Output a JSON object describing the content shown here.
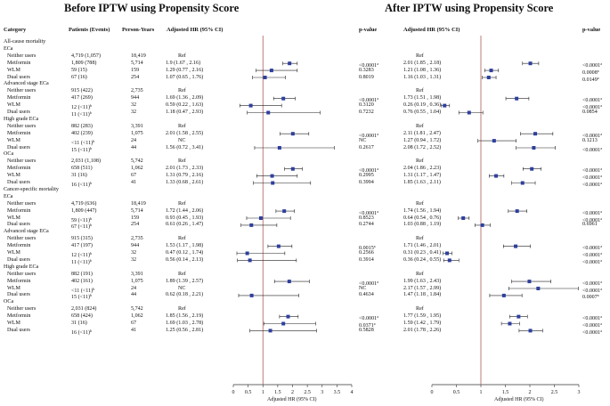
{
  "titles": {
    "before": "Before IPTW using Propensity Score",
    "after": "After IPTW using Propensity Score"
  },
  "headers": {
    "category": "Category",
    "patients": "Patients (Events)",
    "person_years": "Person-Years",
    "adj_hr_before": "Adjusted HR (95% CI)",
    "pvalue_before": "p-value",
    "adj_hr_after": "Adjusted HR (95% CI)",
    "pvalue_after": "p-value"
  },
  "axis": {
    "label": "Adjusted HR (95% CI)",
    "before_ticks": [
      "0",
      "0.5",
      "1",
      "1.5",
      "2",
      "2.5",
      "3",
      "3.5",
      "4"
    ],
    "after_ticks": [
      "0",
      "0.5",
      "1",
      "1.5",
      "2",
      "2.5",
      "3"
    ]
  },
  "rows": [
    {
      "type": "section",
      "label": "All-cause mortality"
    },
    {
      "type": "group",
      "label": "ECa"
    },
    {
      "type": "data",
      "label": "Neither users",
      "patients": "4,719 (1,057)",
      "py": "18,419",
      "hr_b_text": "Ref",
      "p_b": "",
      "hr_a_text": "Ref",
      "p_a": ""
    },
    {
      "type": "data",
      "label": "Metformin",
      "patients": "1,809 (788)",
      "py": "5,714",
      "hr_b_text": "1.9 (1.67 , 2.16)",
      "p_b": "<0.0001",
      "p_b_sup": "a",
      "hr_a_text": "2.01 (1.85 , 2.18)",
      "p_a": "<0.0001",
      "p_a_sup": "a",
      "hr_b": 1.9,
      "lo_b": 1.67,
      "hi_b": 2.16,
      "hr_a": 2.01,
      "lo_a": 1.85,
      "hi_a": 2.18
    },
    {
      "type": "data",
      "label": "WLM",
      "patients": "59 (15)",
      "py": "159",
      "hr_b_text": "1.29 (0.77 , 2.16)",
      "p_b": "0.3283",
      "hr_a_text": "1.21 (1.08 , 1.36)",
      "p_a": "0.0008",
      "p_a_sup": "a",
      "hr_b": 1.29,
      "lo_b": 0.77,
      "hi_b": 2.16,
      "hr_a": 1.21,
      "lo_a": 1.08,
      "hi_a": 1.36
    },
    {
      "type": "data",
      "label": "Dual users",
      "patients": "67 (16)",
      "py": "254",
      "hr_b_text": "1.07 (0.65 , 1.76)",
      "p_b": "0.8019",
      "hr_a_text": "1.16 (1.03 , 1.31)",
      "p_a": "0.0149",
      "p_a_sup": "a",
      "hr_b": 1.07,
      "lo_b": 0.65,
      "hi_b": 1.76,
      "hr_a": 1.16,
      "lo_a": 1.03,
      "hi_a": 1.31
    },
    {
      "type": "group",
      "label": "Advanced stage ECa"
    },
    {
      "type": "data",
      "label": "Neither users",
      "patients": "915 (422)",
      "py": "2,735",
      "hr_b_text": "Ref",
      "p_b": "",
      "hr_a_text": "Ref",
      "p_a": ""
    },
    {
      "type": "data",
      "label": "Metformin",
      "patients": "417 (269)",
      "py": "944",
      "hr_b_text": "1.69 (1.36 , 2.09)",
      "p_b": "<0.0001",
      "p_b_sup": "a",
      "hr_a_text": "1.73 (1.51 , 1.98)",
      "p_a": "<0.0001",
      "p_a_sup": "a",
      "hr_b": 1.69,
      "lo_b": 1.36,
      "hi_b": 2.09,
      "hr_a": 1.73,
      "lo_a": 1.51,
      "hi_a": 1.98
    },
    {
      "type": "data",
      "label": "WLM",
      "patients": "12 (<11)",
      "patients_sup": "b",
      "py": "32",
      "hr_b_text": "0.59 (0.22 , 1.63)",
      "p_b": "0.3120",
      "hr_a_text": "0.26 (0.19 , 0.36)",
      "p_a": "<0.0001",
      "p_a_sup": "a",
      "hr_b": 0.59,
      "lo_b": 0.22,
      "hi_b": 1.63,
      "hr_a": 0.26,
      "lo_a": 0.19,
      "hi_a": 0.36
    },
    {
      "type": "data",
      "label": "Dual users",
      "patients": "11 (<11)",
      "patients_sup": "b",
      "py": "32",
      "hr_b_text": "1.18 (0.47 , 2.93)",
      "p_b": "0.7232",
      "hr_a_text": "0.76 (0.55 , 1.04)",
      "p_a": "0.0854",
      "hr_b": 1.18,
      "lo_b": 0.47,
      "hi_b": 2.93,
      "hr_a": 0.76,
      "lo_a": 0.55,
      "hi_a": 1.04
    },
    {
      "type": "group",
      "label": "High grade ECa"
    },
    {
      "type": "data",
      "label": "Neither users",
      "patients": "882 (283)",
      "py": "3,391",
      "hr_b_text": "Ref",
      "p_b": "",
      "hr_a_text": "Ref",
      "p_a": ""
    },
    {
      "type": "data",
      "label": "Metformin",
      "patients": "402 (239)",
      "py": "1,075",
      "hr_b_text": "2.01 (1.58 , 2.55)",
      "p_b": "<0.0001",
      "p_b_sup": "a",
      "hr_a_text": "2.11 (1.81 , 2.47)",
      "p_a": "<0.0001",
      "p_a_sup": "a",
      "hr_b": 2.01,
      "lo_b": 1.58,
      "hi_b": 2.55,
      "hr_a": 2.11,
      "lo_a": 1.81,
      "hi_a": 2.47
    },
    {
      "type": "data",
      "label": "WLM",
      "patients": "<11 (<11)",
      "patients_sup": "b",
      "py": "24",
      "hr_b_text": "NC",
      "p_b": "NC",
      "hr_a_text": "1.27 (0.94 , 1.72)",
      "p_a": "0.1213",
      "hr_a": 1.27,
      "lo_a": 0.94,
      "hi_a": 1.72
    },
    {
      "type": "data",
      "label": "Dual users",
      "patients": "15 (<11)",
      "patients_sup": "b",
      "py": "44",
      "hr_b_text": "1.56 (0.72 , 3.41)",
      "p_b": "0.2617",
      "hr_a_text": "2.08 (1.72 , 2.52)",
      "p_a": "<0.0001",
      "p_a_sup": "a",
      "hr_b": 1.56,
      "lo_b": 0.72,
      "hi_b": 3.41,
      "hr_a": 2.08,
      "lo_a": 1.72,
      "hi_a": 2.52
    },
    {
      "type": "group",
      "label": "OCa"
    },
    {
      "type": "data",
      "label": "Neither users",
      "patients": "2,031 (1,108)",
      "py": "5,742",
      "hr_b_text": "Ref",
      "p_b": "",
      "hr_a_text": "Ref",
      "p_a": ""
    },
    {
      "type": "data",
      "label": "Metformin",
      "patients": "658 (511)",
      "py": "1,062",
      "hr_b_text": "2.01 (1.73 , 2.33)",
      "p_b": "<0.0001",
      "p_b_sup": "a",
      "hr_a_text": "2.04 (1.86 , 2.23)",
      "p_a": "<0.0001",
      "p_a_sup": "a",
      "hr_b": 2.01,
      "lo_b": 1.73,
      "hi_b": 2.33,
      "hr_a": 2.04,
      "lo_a": 1.86,
      "hi_a": 2.23
    },
    {
      "type": "data",
      "label": "WLM",
      "patients": "31 (16)",
      "py": "67",
      "hr_b_text": "1.31 (0.79 , 2.16)",
      "p_b": "0.2995",
      "hr_a_text": "1.31 (1.17 , 1.47)",
      "p_a": "<0.0001",
      "p_a_sup": "a",
      "hr_b": 1.31,
      "lo_b": 0.79,
      "hi_b": 2.16,
      "hr_a": 1.31,
      "lo_a": 1.17,
      "hi_a": 1.47
    },
    {
      "type": "data",
      "label": "Dual users",
      "patients": "16 (<11)",
      "patients_sup": "b",
      "py": "41",
      "hr_b_text": "1.33 (0.68 , 2.61)",
      "p_b": "0.3994",
      "hr_a_text": "1.85 (1.63 , 2.11)",
      "p_a": "<0.0001",
      "p_a_sup": "a",
      "hr_b": 1.33,
      "lo_b": 0.68,
      "hi_b": 2.61,
      "hr_a": 1.85,
      "lo_a": 1.63,
      "hi_a": 2.11
    },
    {
      "type": "section",
      "label": "Cancer-specific mortality"
    },
    {
      "type": "group",
      "label": "ECa"
    },
    {
      "type": "data",
      "label": "Neither users",
      "patients": "4,719 (636)",
      "py": "18,419",
      "hr_b_text": "Ref",
      "p_b": "",
      "hr_a_text": "Ref",
      "p_a": ""
    },
    {
      "type": "data",
      "label": "Metformin",
      "patients": "1,809 (447)",
      "py": "5,714",
      "hr_b_text": "1.72 (1.44 , 2.06)",
      "p_b": "<0.0001",
      "p_b_sup": "a",
      "hr_a_text": "1.74 (1.56 , 1.94)",
      "p_a": "<0.0001",
      "p_a_sup": "a",
      "hr_b": 1.72,
      "lo_b": 1.44,
      "hi_b": 2.06,
      "hr_a": 1.74,
      "lo_a": 1.56,
      "hi_a": 1.94
    },
    {
      "type": "data",
      "label": "WLM",
      "patients": "59 (<11)",
      "patients_sup": "b",
      "py": "159",
      "hr_b_text": "0.93 (0.45 , 1.93)",
      "p_b": "0.8523",
      "hr_a_text": "0.64 (0.54 , 0.76)",
      "p_a": "<0.0001",
      "p_a_sup": "a",
      "hr_b": 0.93,
      "lo_b": 0.45,
      "hi_b": 1.93,
      "hr_a": 0.64,
      "lo_a": 0.54,
      "hi_a": 0.76
    },
    {
      "type": "data",
      "label": "Dual users",
      "patients": "67 (<11)",
      "patients_sup": "b",
      "py": "254",
      "hr_b_text": "0.61 (0.26 , 1.47)",
      "p_b": "0.2744",
      "hr_a_text": "1.03 (0.88 , 1.19)",
      "p_a": "0.6961",
      "hr_b": 0.61,
      "lo_b": 0.26,
      "hi_b": 1.47,
      "hr_a": 1.03,
      "lo_a": 0.88,
      "hi_a": 1.19
    },
    {
      "type": "group",
      "label": "Advanced stage ECa"
    },
    {
      "type": "data",
      "label": "Neither users",
      "patients": "915 (315)",
      "py": "2,735",
      "hr_b_text": "Ref",
      "p_b": "",
      "hr_a_text": "Ref",
      "p_a": ""
    },
    {
      "type": "data",
      "label": "Metformin",
      "patients": "417 (197)",
      "py": "944",
      "hr_b_text": "1.53 (1.17 , 1.98)",
      "p_b": "0.0015",
      "p_b_sup": "a",
      "hr_a_text": "1.71 (1.46 , 2.01)",
      "p_a": "<0.0001",
      "p_a_sup": "a",
      "hr_b": 1.53,
      "lo_b": 1.17,
      "hi_b": 1.98,
      "hr_a": 1.71,
      "lo_a": 1.46,
      "hi_a": 2.01
    },
    {
      "type": "data",
      "label": "WLM",
      "patients": "12 (<11)",
      "patients_sup": "b",
      "py": "32",
      "hr_b_text": "0.47 (0.12 , 1.74)",
      "p_b": "0.2566",
      "hr_a_text": "0.31 (0.23 , 0.41)",
      "p_a": "<0.0001",
      "p_a_sup": "a",
      "hr_b": 0.47,
      "lo_b": 0.12,
      "hi_b": 1.74,
      "hr_a": 0.31,
      "lo_a": 0.23,
      "hi_a": 0.41
    },
    {
      "type": "data",
      "label": "Dual users",
      "patients": "11 (<11)",
      "patients_sup": "b",
      "py": "32",
      "hr_b_text": "0.56 (0.14 , 2.13)",
      "p_b": "0.3914",
      "hr_a_text": "0.36 (0.24 , 0.55)",
      "p_a": "<0.0001",
      "p_a_sup": "a",
      "hr_b": 0.56,
      "lo_b": 0.14,
      "hi_b": 2.13,
      "hr_a": 0.36,
      "lo_a": 0.24,
      "hi_a": 0.55
    },
    {
      "type": "group",
      "label": "High grade ECa"
    },
    {
      "type": "data",
      "label": "Neither users",
      "patients": "882 (191)",
      "py": "3,391",
      "hr_b_text": "Ref",
      "p_b": "",
      "hr_a_text": "Ref",
      "p_a": ""
    },
    {
      "type": "data",
      "label": "Metformin",
      "patients": "402 (161)",
      "py": "1,075",
      "hr_b_text": "1.89 (1.39 , 2.57)",
      "p_b": "<0.0001",
      "p_b_sup": "a",
      "hr_a_text": "1.99 (1.63 , 2.43)",
      "p_a": "<0.0001",
      "p_a_sup": "a",
      "hr_b": 1.89,
      "lo_b": 1.39,
      "hi_b": 2.57,
      "hr_a": 1.99,
      "lo_a": 1.63,
      "hi_a": 2.43
    },
    {
      "type": "data",
      "label": "WLM",
      "patients": "<11 (<11)",
      "patients_sup": "b",
      "py": "24",
      "hr_b_text": "NC",
      "p_b": "NC",
      "hr_a_text": "2.17 (1.57 , 2.99)",
      "p_a": "<0.0001",
      "p_a_sup": "a",
      "hr_a": 2.17,
      "lo_a": 1.57,
      "hi_a": 2.99
    },
    {
      "type": "data",
      "label": "Dual users",
      "patients": "15 (<11)",
      "patients_sup": "b",
      "py": "44",
      "hr_b_text": "0.62 (0.18 , 2.21)",
      "p_b": "0.4634",
      "hr_a_text": "1.47 (1.18 , 1.84)",
      "p_a": "0.0007",
      "p_a_sup": "a",
      "hr_b": 0.62,
      "lo_b": 0.18,
      "hi_b": 2.21,
      "hr_a": 1.47,
      "lo_a": 1.18,
      "hi_a": 1.84
    },
    {
      "type": "group",
      "label": "OCa"
    },
    {
      "type": "data",
      "label": "Neither users",
      "patients": "2,031 (824)",
      "py": "5,742",
      "hr_b_text": "Ref",
      "p_b": "",
      "hr_a_text": "Ref",
      "p_a": ""
    },
    {
      "type": "data",
      "label": "Metformin",
      "patients": "658 (424)",
      "py": "1,062",
      "hr_b_text": "1.85 (1.56 , 2.19)",
      "p_b": "<0.0001",
      "p_b_sup": "a",
      "hr_a_text": "1.77 (1.59 , 1.95)",
      "p_a": "<0.0001",
      "p_a_sup": "a",
      "hr_b": 1.85,
      "lo_b": 1.56,
      "hi_b": 2.19,
      "hr_a": 1.77,
      "lo_a": 1.59,
      "hi_a": 1.95
    },
    {
      "type": "data",
      "label": "WLM",
      "patients": "31 (16)",
      "py": "67",
      "hr_b_text": "1.69 (1.03 , 2.78)",
      "p_b": "0.0371",
      "p_b_sup": "a",
      "hr_a_text": "1.59 (1.42 , 1.79)",
      "p_a": "<0.0001",
      "p_a_sup": "a",
      "hr_b": 1.69,
      "lo_b": 1.03,
      "hi_b": 2.78,
      "hr_a": 1.59,
      "lo_a": 1.42,
      "hi_a": 1.79
    },
    {
      "type": "data",
      "label": "Dual users",
      "patients": "16 (<11)",
      "patients_sup": "b",
      "py": "41",
      "hr_b_text": "1.25 (0.56 , 2.81)",
      "p_b": "0.5828",
      "hr_a_text": "2.01 (1.78 , 2.26)",
      "p_a": "<0.0001",
      "p_a_sup": "a",
      "hr_b": 1.25,
      "lo_b": 0.56,
      "hi_b": 2.81,
      "hr_a": 2.01,
      "lo_a": 1.78,
      "hi_a": 2.26
    }
  ],
  "chart_data": [
    {
      "type": "forest",
      "title": "Before IPTW using Propensity Score",
      "xlabel": "Adjusted HR (95% CI)",
      "xlim": [
        0,
        4
      ],
      "reference_line": 1,
      "marker_color": "#2e3f9e",
      "reference_color": "#b05a5a"
    },
    {
      "type": "forest",
      "title": "After IPTW using Propensity Score",
      "xlabel": "Adjusted HR (95% CI)",
      "xlim": [
        0,
        3
      ],
      "reference_line": 1,
      "marker_color": "#2e3f9e",
      "reference_color": "#b05a5a"
    }
  ]
}
